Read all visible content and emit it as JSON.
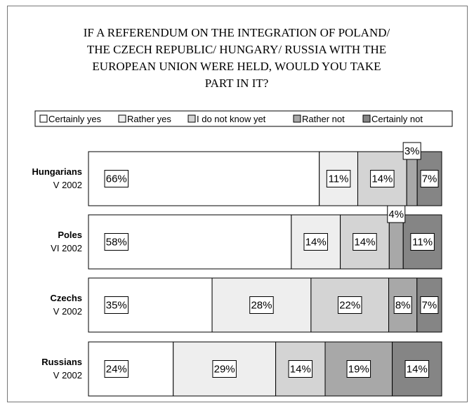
{
  "chart_data": {
    "type": "bar",
    "orientation": "horizontal",
    "stacked": true,
    "normalized_percent": true,
    "title_lines": [
      "IF A REFERENDUM ON THE INTEGRATION OF POLAND/",
      "THE CZECH REPUBLIC/ HUNGARY/ RUSSIA WITH THE",
      "EUROPEAN UNION WERE HELD, WOULD YOU TAKE",
      "PART IN IT?"
    ],
    "legend_position": "top",
    "categories": [
      {
        "name": "Hungarians",
        "sub": "V 2002"
      },
      {
        "name": "Poles",
        "sub": "VI 2002"
      },
      {
        "name": "Czechs",
        "sub": "V 2002"
      },
      {
        "name": "Russians",
        "sub": "V 2002"
      }
    ],
    "series": [
      {
        "name": "Certainly yes",
        "color": "#ffffff",
        "values": [
          66,
          58,
          35,
          24
        ]
      },
      {
        "name": "Rather yes",
        "color": "#eeeeee",
        "values": [
          11,
          14,
          28,
          29
        ]
      },
      {
        "name": "I do not know yet",
        "color": "#d4d4d4",
        "values": [
          14,
          14,
          22,
          14
        ]
      },
      {
        "name": "Rather not",
        "color": "#a8a8a8",
        "values": [
          3,
          4,
          8,
          19
        ]
      },
      {
        "name": "Certainly not",
        "color": "#858585",
        "values": [
          7,
          11,
          7,
          14
        ]
      }
    ],
    "value_suffix": "%"
  }
}
